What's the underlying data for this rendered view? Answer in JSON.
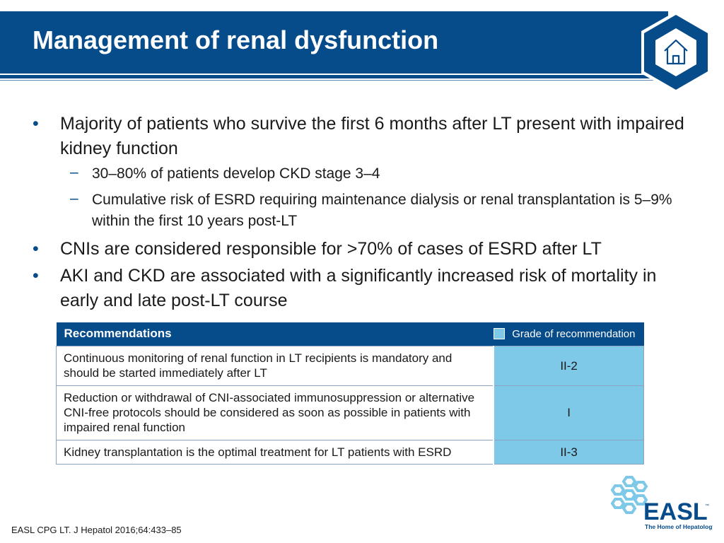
{
  "slide": {
    "title": "Management of renal dysfunction"
  },
  "bullets": [
    {
      "text": "Majority of patients who survive the first 6 months after LT present with impaired kidney function",
      "sub": [
        "30–80% of patients develop CKD stage 3–4",
        "Cumulative risk of ESRD requiring maintenance dialysis or renal transplantation is 5–9% within the first 10 years post-LT"
      ]
    },
    {
      "text": "CNIs are considered responsible for >70% of cases of ESRD after LT"
    },
    {
      "text": "AKI and CKD are associated with a significantly increased risk of mortality in early and late post-LT course"
    }
  ],
  "recommendations": {
    "header": "Recommendations",
    "legend_label": "Grade of recommendation",
    "rows": [
      {
        "text": "Continuous monitoring of renal function in LT recipients is mandatory and should be started immediately after LT",
        "grade": "II-2"
      },
      {
        "text": "Reduction or withdrawal of CNI-associated immunosuppression or alternative CNI-free protocols should be considered as soon as possible in patients with impaired renal function",
        "grade": "I"
      },
      {
        "text": "Kidney transplantation is the optimal treatment for LT patients with ESRD",
        "grade": "II-3"
      }
    ]
  },
  "logo": {
    "name": "EASL",
    "tagline": "The Home of Hepatology",
    "trademark": "™"
  },
  "citation": "EASL CPG LT. J Hepatol 2016;64:433–85",
  "icons": {
    "home": "home-icon"
  },
  "colors": {
    "brand_blue": "#064b8a",
    "grade_fill": "#7ec8e8"
  }
}
